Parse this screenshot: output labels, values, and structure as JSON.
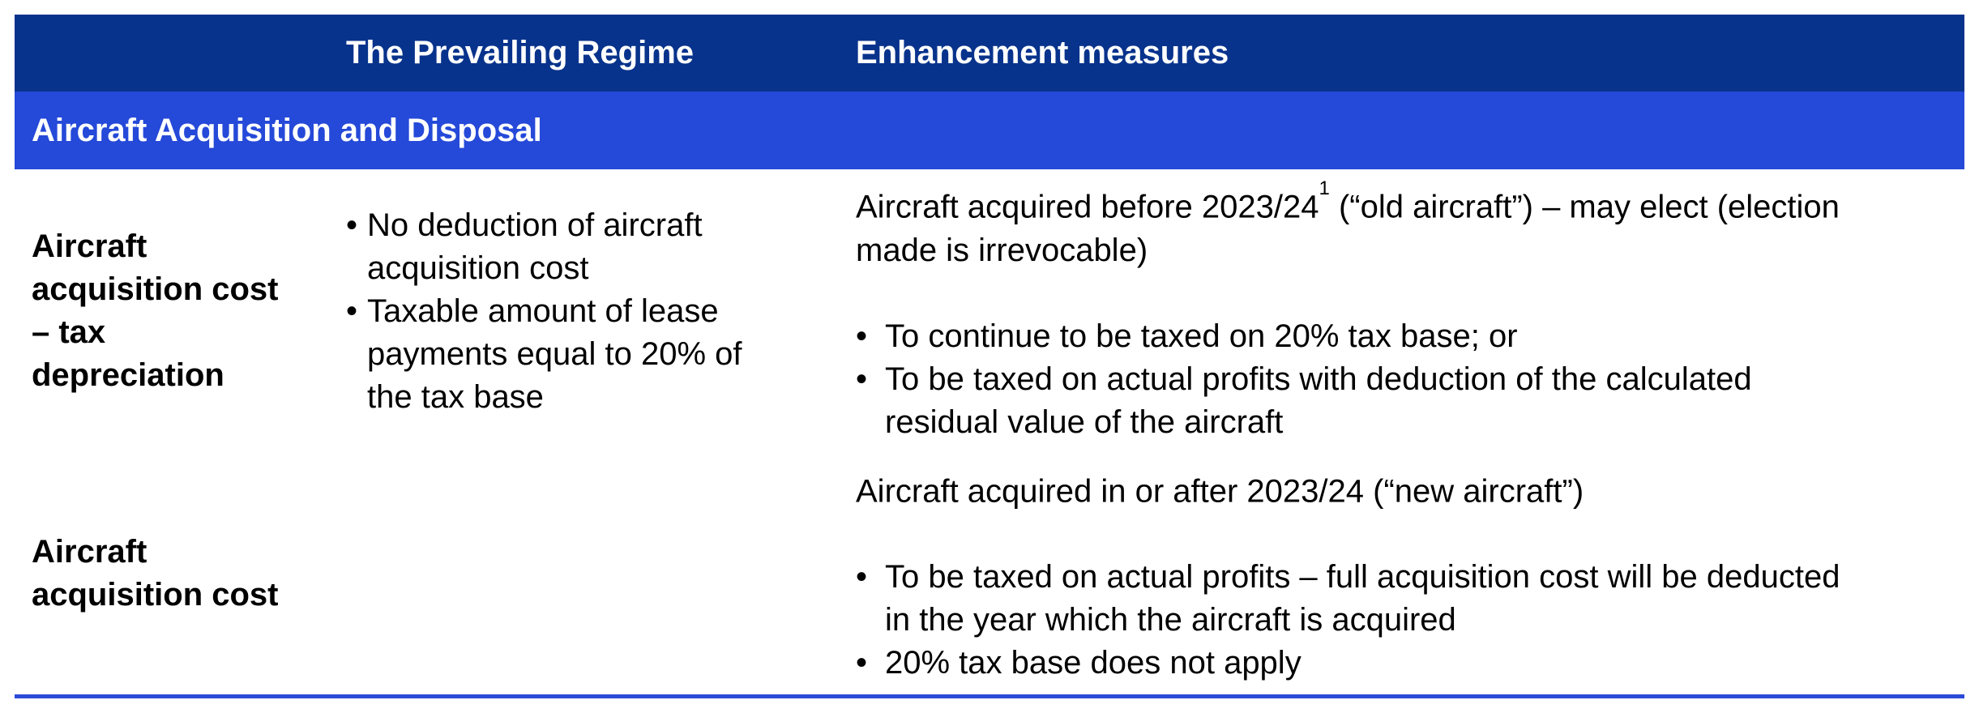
{
  "bullet_char": "•",
  "colors": {
    "header_background": "#08338c",
    "section_background": "#2549d8",
    "bottom_rule": "#2b4bd7",
    "header_text": "#ffffff",
    "body_text": "#000000"
  },
  "header": {
    "col1": "",
    "col2": "The Prevailing Regime",
    "col3": "Enhancement measures"
  },
  "section": {
    "title": "Aircraft Acquisition and Disposal"
  },
  "rows": [
    {
      "label": "Aircraft\nacquisition cost\n– tax\ndepreciation",
      "prevailing": {
        "bullets": [
          "No deduction of aircraft\nacquisition cost",
          "Taxable amount of lease\npayments equal to 20% of\nthe tax base"
        ]
      },
      "enhancement": {
        "para": {
          "pre": "Aircraft acquired before 2023/24",
          "sup": "1",
          "post": " (“old aircraft”) – may elect (election\nmade is irrevocable)"
        },
        "bullets": [
          "To continue to be taxed on 20% tax base; or",
          "To be taxed on actual profits with deduction of the calculated\nresidual value of the aircraft"
        ]
      }
    },
    {
      "label": "Aircraft\nacquisition cost",
      "prevailing": {
        "bullets": []
      },
      "enhancement": {
        "para": {
          "pre": "Aircraft acquired in or after 2023/24 (“new aircraft”)",
          "sup": "",
          "post": ""
        },
        "bullets": [
          "To be taxed on actual profits – full acquisition cost will be deducted\nin the year which the aircraft is acquired",
          "20% tax base does not apply"
        ]
      }
    }
  ]
}
